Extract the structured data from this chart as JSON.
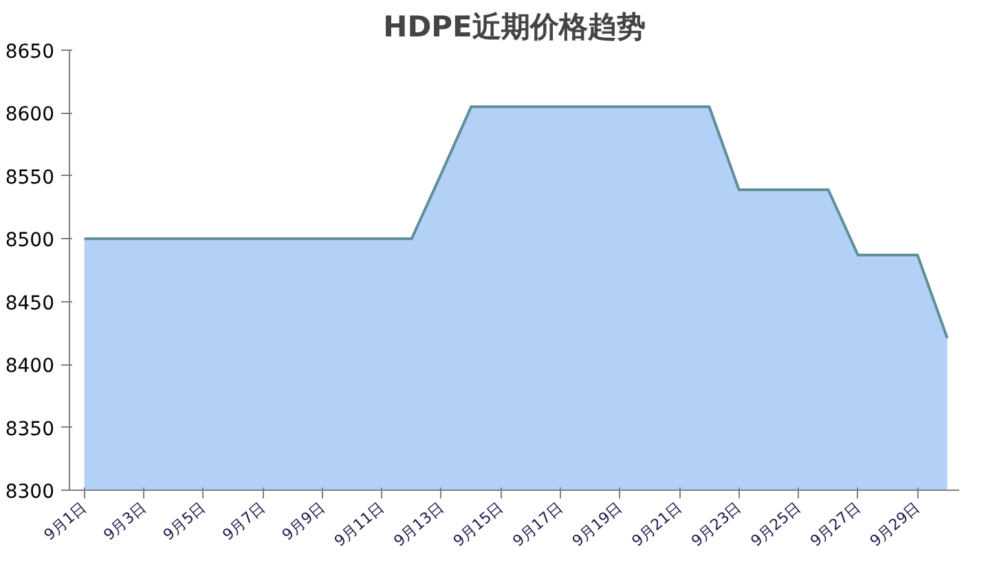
{
  "chart_data": {
    "type": "area",
    "title": "HDPE近期价格趋势",
    "categories": [
      "9月1日",
      null,
      "9月3日",
      null,
      "9月5日",
      null,
      "9月7日",
      null,
      "9月9日",
      null,
      "9月11日",
      null,
      "9月13日",
      null,
      "9月15日",
      null,
      "9月17日",
      null,
      "9月19日",
      null,
      "9月21日",
      null,
      "9月23日",
      null,
      "9月25日",
      null,
      "9月27日",
      null,
      "9月29日",
      null
    ],
    "series": [
      {
        "color": "#a6c9f4",
        "values": [
          8500,
          8500,
          8500,
          8500,
          8500,
          8500,
          8500,
          8500,
          8500,
          8500,
          8500,
          8500,
          8552,
          8605,
          8605,
          8605,
          8605,
          8605,
          8605,
          8605,
          8605,
          8605,
          8539,
          8539,
          8539,
          8539,
          8487,
          8487,
          8487,
          8421
        ]
      }
    ],
    "ylim": [
      8300,
      8650
    ],
    "yticks": [
      8300,
      8350,
      8400,
      8450,
      8500,
      8550,
      8600,
      8650
    ],
    "grid": false
  }
}
